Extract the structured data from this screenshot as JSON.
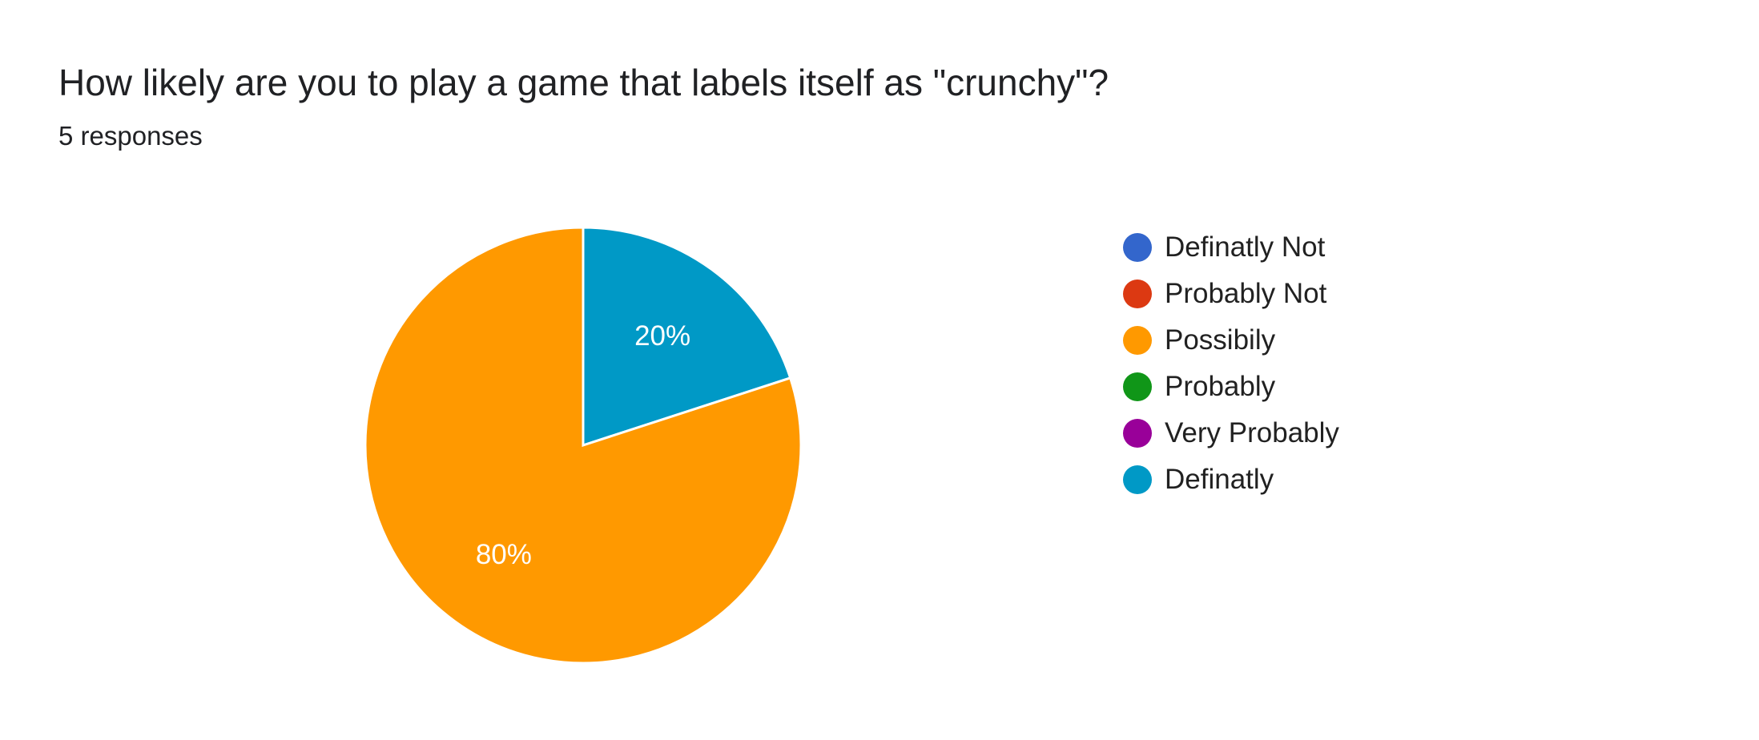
{
  "header": {
    "title": "How likely are you to play a game that labels itself as \"crunchy\"?",
    "subtitle": "5 responses"
  },
  "chart_data": {
    "type": "pie",
    "title": "How likely are you to play a game that labels itself as \"crunchy\"?",
    "subtitle": "5 responses",
    "legend_position": "right",
    "categories": [
      "Definatly Not",
      "Probably Not",
      "Possibily",
      "Probably",
      "Very Probably",
      "Definatly"
    ],
    "values": [
      0,
      0,
      4,
      0,
      0,
      1
    ],
    "percent_labels": [
      "",
      "",
      "80%",
      "",
      "",
      "20%"
    ],
    "colors": [
      "#3366cc",
      "#dc3912",
      "#ff9900",
      "#109618",
      "#990099",
      "#0099c6"
    ]
  }
}
